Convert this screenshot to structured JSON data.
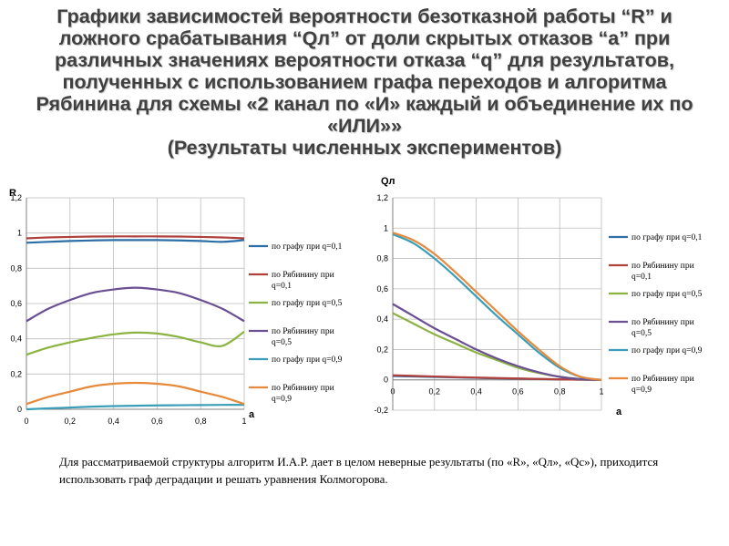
{
  "title": {
    "main": "Графики зависимостей вероятности  безотказной работы “R” и ложного срабатывания “Qл” от доли скрытых отказов “a” при различных значениях вероятности отказа “q” для результатов, полученных с использованием графа переходов и алгоритма Рябинина для схемы «2 канал по «И» каждый и объединение их по «ИЛИ»»",
    "subtitle": "(Результаты численных экспериментов)"
  },
  "legend_labels": [
    "по графу при q=0,1",
    "по Рябинину при q=0,1",
    "по графу при q=0,5",
    "по Рябинину при q=0,5",
    "по графу при q=0,9",
    "по Рябинину при q=0,9"
  ],
  "colors": [
    "#2c6fa6",
    "#b0403c",
    "#8bb341",
    "#6a4f93",
    "#3a9eb8",
    "#e7893a"
  ],
  "chart_data": [
    {
      "type": "line",
      "ylabel": "R",
      "xlabel": "a",
      "xlim": [
        0,
        1
      ],
      "ylim": [
        0,
        1.2
      ],
      "xticks": [
        "0",
        "0,2",
        "0,4",
        "0,6",
        "0,8",
        "1"
      ],
      "yticks": [
        "0",
        "0,2",
        "0,4",
        "0,6",
        "0,8",
        "1",
        "1,2"
      ],
      "grid": true,
      "legend": "right",
      "x": [
        0,
        0.1,
        0.2,
        0.3,
        0.4,
        0.5,
        0.6,
        0.7,
        0.8,
        0.9,
        1.0
      ],
      "series": [
        {
          "name": "по графу при q=0,1",
          "values": [
            0.945,
            0.95,
            0.955,
            0.958,
            0.96,
            0.96,
            0.96,
            0.958,
            0.955,
            0.95,
            0.96
          ]
        },
        {
          "name": "по Рябинину при q=0,1",
          "values": [
            0.97,
            0.975,
            0.978,
            0.98,
            0.981,
            0.981,
            0.981,
            0.98,
            0.978,
            0.975,
            0.97
          ]
        },
        {
          "name": "по графу при q=0,5",
          "values": [
            0.31,
            0.35,
            0.38,
            0.405,
            0.425,
            0.435,
            0.43,
            0.41,
            0.38,
            0.36,
            0.44
          ]
        },
        {
          "name": "по Рябинину при q=0,5",
          "values": [
            0.5,
            0.57,
            0.62,
            0.66,
            0.68,
            0.69,
            0.68,
            0.66,
            0.62,
            0.57,
            0.5
          ]
        },
        {
          "name": "по графу при q=0,9",
          "values": [
            0.0,
            0.005,
            0.01,
            0.015,
            0.018,
            0.02,
            0.022,
            0.023,
            0.024,
            0.025,
            0.025
          ]
        },
        {
          "name": "по Рябинину при q=0,9",
          "values": [
            0.03,
            0.07,
            0.1,
            0.13,
            0.145,
            0.15,
            0.145,
            0.13,
            0.1,
            0.07,
            0.03
          ]
        }
      ]
    },
    {
      "type": "line",
      "ylabel": "Qл",
      "xlabel": "a",
      "xlim": [
        0,
        1
      ],
      "ylim": [
        -0.2,
        1.2
      ],
      "xticks": [
        "0",
        "0,2",
        "0,4",
        "0,6",
        "0,8",
        "1"
      ],
      "yticks": [
        "-0,2",
        "0",
        "0,2",
        "0,4",
        "0,6",
        "0,8",
        "1",
        "1,2"
      ],
      "grid": true,
      "legend": "right",
      "x": [
        0,
        0.1,
        0.2,
        0.3,
        0.4,
        0.5,
        0.6,
        0.7,
        0.8,
        0.9,
        1.0
      ],
      "series": [
        {
          "name": "по графу при q=0,1",
          "values": [
            0.025,
            0.022,
            0.019,
            0.016,
            0.013,
            0.01,
            0.008,
            0.005,
            0.003,
            0.001,
            0.0
          ]
        },
        {
          "name": "по Рябинину при q=0,1",
          "values": [
            0.03,
            0.026,
            0.022,
            0.018,
            0.015,
            0.012,
            0.009,
            0.006,
            0.003,
            0.001,
            0.0
          ]
        },
        {
          "name": "по графу при q=0,5",
          "values": [
            0.44,
            0.37,
            0.3,
            0.24,
            0.18,
            0.13,
            0.08,
            0.045,
            0.02,
            0.005,
            0.0
          ]
        },
        {
          "name": "по Рябинину при q=0,5",
          "values": [
            0.5,
            0.42,
            0.34,
            0.27,
            0.2,
            0.14,
            0.09,
            0.05,
            0.02,
            0.005,
            0.0
          ]
        },
        {
          "name": "по графу при q=0,9",
          "values": [
            0.96,
            0.9,
            0.8,
            0.68,
            0.55,
            0.42,
            0.3,
            0.18,
            0.08,
            0.02,
            0.0
          ]
        },
        {
          "name": "по Рябинину при q=0,9",
          "values": [
            0.97,
            0.92,
            0.83,
            0.71,
            0.58,
            0.45,
            0.32,
            0.2,
            0.09,
            0.02,
            0.0
          ]
        }
      ]
    }
  ],
  "conclusion": "Для рассматриваемой структуры алгоритм И.А.Р. дает в целом неверные результаты (по «R», «Qл», «Qc»), приходится использовать граф деградации и решать уравнения Колмогорова."
}
